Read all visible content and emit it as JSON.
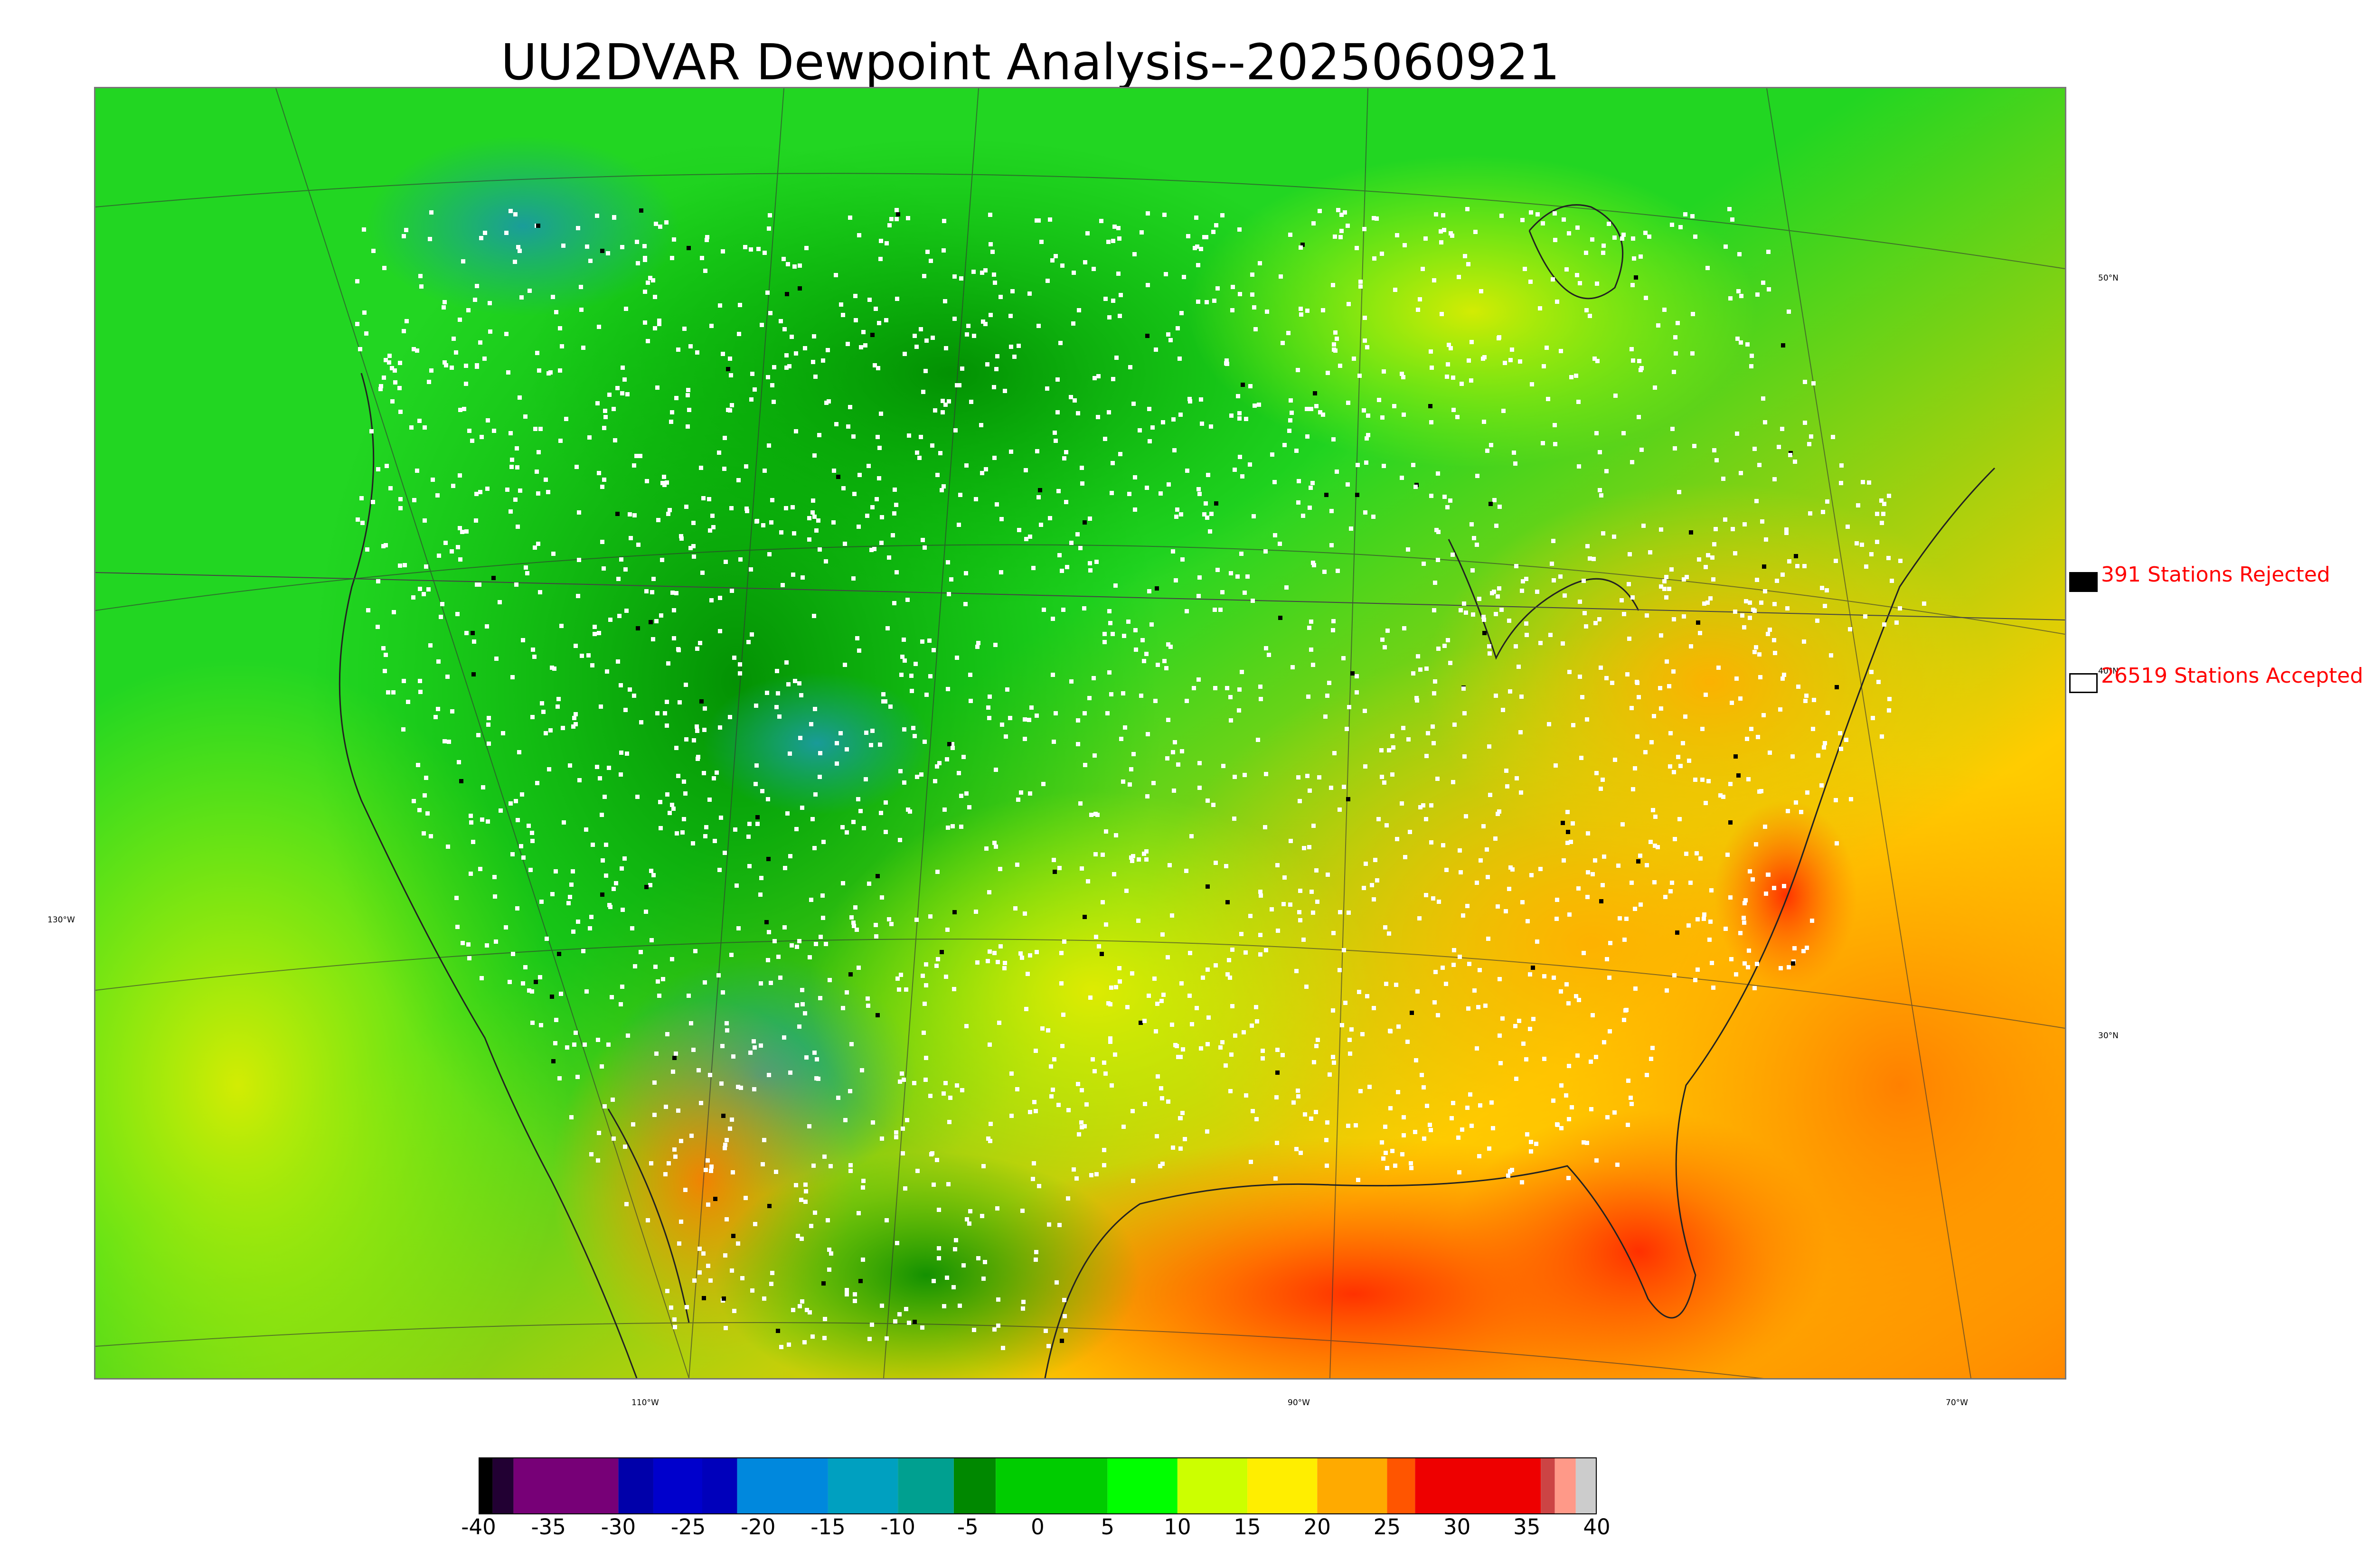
{
  "title": "UU2DVAR Dewpoint Analysis--2025060921",
  "legend": {
    "rejected": {
      "count_label": "391 Stations Rejected",
      "swatch_color": "#000000"
    },
    "accepted": {
      "count_label": "26519 Stations Accepted",
      "swatch_color": "#ffffff"
    }
  },
  "map": {
    "latitude_labels": [
      "50°N",
      "40°N",
      "30°N"
    ],
    "longitude_labels": [
      "130°W",
      "110°W",
      "90°W",
      "70°W"
    ]
  },
  "colorbar": {
    "ticks": [
      "-40",
      "-35",
      "-30",
      "-25",
      "-20",
      "-15",
      "-10",
      "-5",
      "0",
      "5",
      "10",
      "15",
      "20",
      "25",
      "30",
      "35",
      "40"
    ],
    "range": [
      -40,
      40
    ],
    "colors": [
      {
        "from": -40,
        "to": -39,
        "color": "#000000"
      },
      {
        "from": -39,
        "to": -37.5,
        "color": "#220033"
      },
      {
        "from": -37.5,
        "to": -30,
        "color": "#770077"
      },
      {
        "from": -30,
        "to": -27.5,
        "color": "#0000aa"
      },
      {
        "from": -27.5,
        "to": -24,
        "color": "#0000cc"
      },
      {
        "from": -24,
        "to": -21.5,
        "color": "#0000bb"
      },
      {
        "from": -21.5,
        "to": -15,
        "color": "#0088dd"
      },
      {
        "from": -15,
        "to": -10,
        "color": "#00a0c0"
      },
      {
        "from": -10,
        "to": -6,
        "color": "#00a090"
      },
      {
        "from": -6,
        "to": -3,
        "color": "#008800"
      },
      {
        "from": -3,
        "to": 5,
        "color": "#00cc00"
      },
      {
        "from": 5,
        "to": 10,
        "color": "#00ff00"
      },
      {
        "from": 10,
        "to": 15,
        "color": "#ccff00"
      },
      {
        "from": 15,
        "to": 20,
        "color": "#ffee00"
      },
      {
        "from": 20,
        "to": 25,
        "color": "#ffaa00"
      },
      {
        "from": 25,
        "to": 27,
        "color": "#ff5500"
      },
      {
        "from": 27,
        "to": 36,
        "color": "#ee0000"
      },
      {
        "from": 36,
        "to": 37,
        "color": "#cc4444"
      },
      {
        "from": 37,
        "to": 38.5,
        "color": "#ff9988"
      },
      {
        "from": 38.5,
        "to": 40,
        "color": "#cccccc"
      }
    ]
  }
}
